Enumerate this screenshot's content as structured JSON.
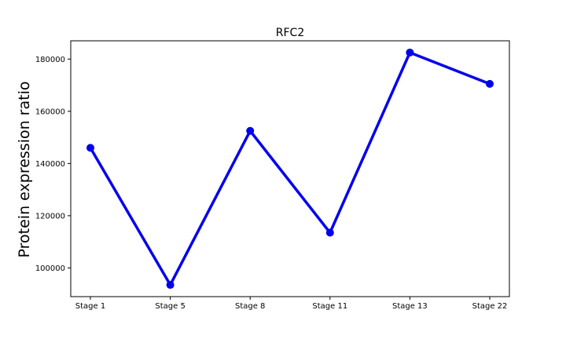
{
  "chart_data": {
    "type": "line",
    "title": "RFC2",
    "xlabel": "",
    "ylabel": "Protein expression ratio",
    "categories": [
      "Stage 1",
      "Stage 5",
      "Stage 8",
      "Stage 11",
      "Stage 13",
      "Stage 22"
    ],
    "series": [
      {
        "values": [
          146000,
          93500,
          152500,
          113500,
          182500,
          170500
        ]
      }
    ],
    "ylim": [
      89000,
      187000
    ],
    "yticks": [
      100000,
      120000,
      140000,
      160000,
      180000
    ],
    "ytick_labels": [
      "100000",
      "120000",
      "140000",
      "160000",
      "180000"
    ],
    "grid": false,
    "line_color": "#0000ee",
    "marker": "circle"
  }
}
